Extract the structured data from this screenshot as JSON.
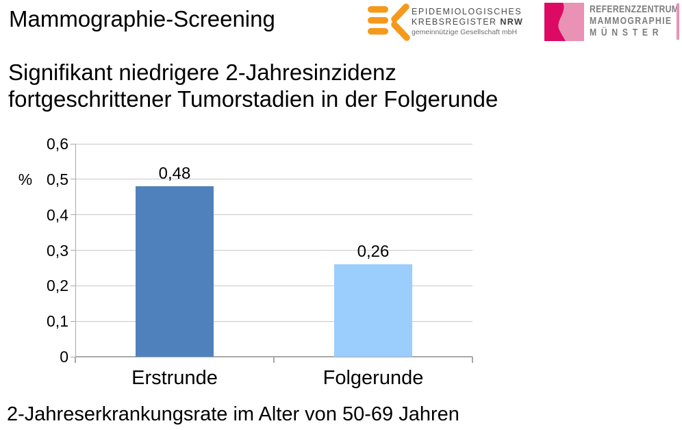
{
  "slide": {
    "title": "Mammographie-Screening",
    "subtitle_line1": "Signifikant niedrigere 2-Jahresinzidenz",
    "subtitle_line2": "fortgeschrittener Tumorstadien in der Folgerunde",
    "caption": "2-Jahreserkrankungsrate im Alter von 50-69 Jahren"
  },
  "logos": {
    "krebsregister": {
      "icon": "ek-orange-bars-icon",
      "line1": "EPIDEMIOLOGISCHES",
      "line2_normal": "KREBSREGISTER ",
      "line2_bold": "NRW",
      "line3": "gemeinnützige Gesellschaft mbH",
      "orange": "#F5991B"
    },
    "referenzzentrum": {
      "icon": "breast-wave-icon",
      "line1": "REFERENZZENTRUM",
      "line2": "MAMMOGRAPHIE",
      "line3": "MÜNSTER",
      "dark_pink": "#DC0A63",
      "light_pink": "#EA92B5"
    }
  },
  "chart_data": {
    "type": "bar",
    "title": "",
    "categories": [
      "Erstrunde",
      "Folgerunde"
    ],
    "values": [
      0.48,
      0.26
    ],
    "value_labels": [
      "0,48",
      "0,26"
    ],
    "bar_colors": [
      "#4F81BD",
      "#9BCDFD"
    ],
    "xlabel": "",
    "ylabel": "%",
    "ylim": [
      0,
      0.6
    ],
    "yticks": [
      0,
      0.1,
      0.2,
      0.3,
      0.4,
      0.5,
      0.6
    ],
    "ytick_labels": [
      "0",
      "0,1",
      "0,2",
      "0,3",
      "0,4",
      "0,5",
      "0,6"
    ],
    "grid": true,
    "legend": false,
    "gridline_color": "#C7C7C7",
    "axis_color": "#A8A8A8",
    "label_color": "#000000"
  }
}
